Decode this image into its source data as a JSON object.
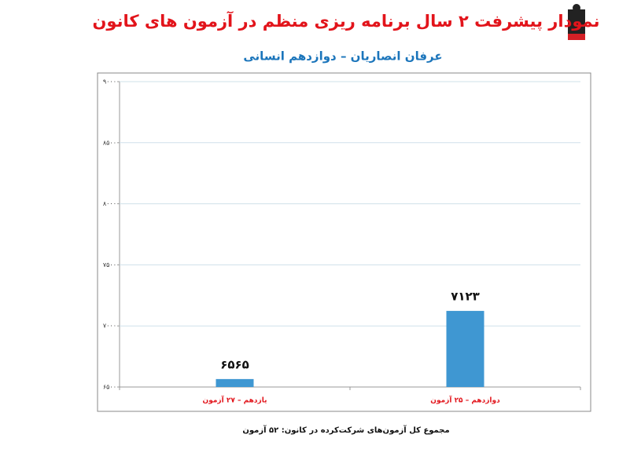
{
  "chart_data": {
    "type": "bar",
    "title": "نمودار پیشرفت ۲ سال برنامه ریزی منظم در آزمون های کانون",
    "subtitle": "عرفان انصاریان – دوازدهم انسانی",
    "categories": [
      "یازدهم – ۲۷ آزمون",
      "دوازدهم – ۲۵ آزمون"
    ],
    "values": [
      6565,
      7123
    ],
    "value_labels": [
      "۶۵۶۵",
      "۷۱۲۳"
    ],
    "color": "#3f97d2",
    "ylim": [
      6500,
      9000
    ],
    "yticks": [
      {
        "value": 6500,
        "label": "۶۵۰۰"
      },
      {
        "value": 7000,
        "label": "۷۰۰۰"
      },
      {
        "value": 7500,
        "label": "۷۵۰۰"
      },
      {
        "value": 8000,
        "label": "۸۰۰۰"
      },
      {
        "value": 8500,
        "label": "۸۵۰۰"
      },
      {
        "value": 9000,
        "label": "۹۰۰۰"
      }
    ],
    "grid": true,
    "footnote": "مجموع کل آزمون‌های شرکت‌کرده در کانون: ۵۲ آزمون"
  }
}
